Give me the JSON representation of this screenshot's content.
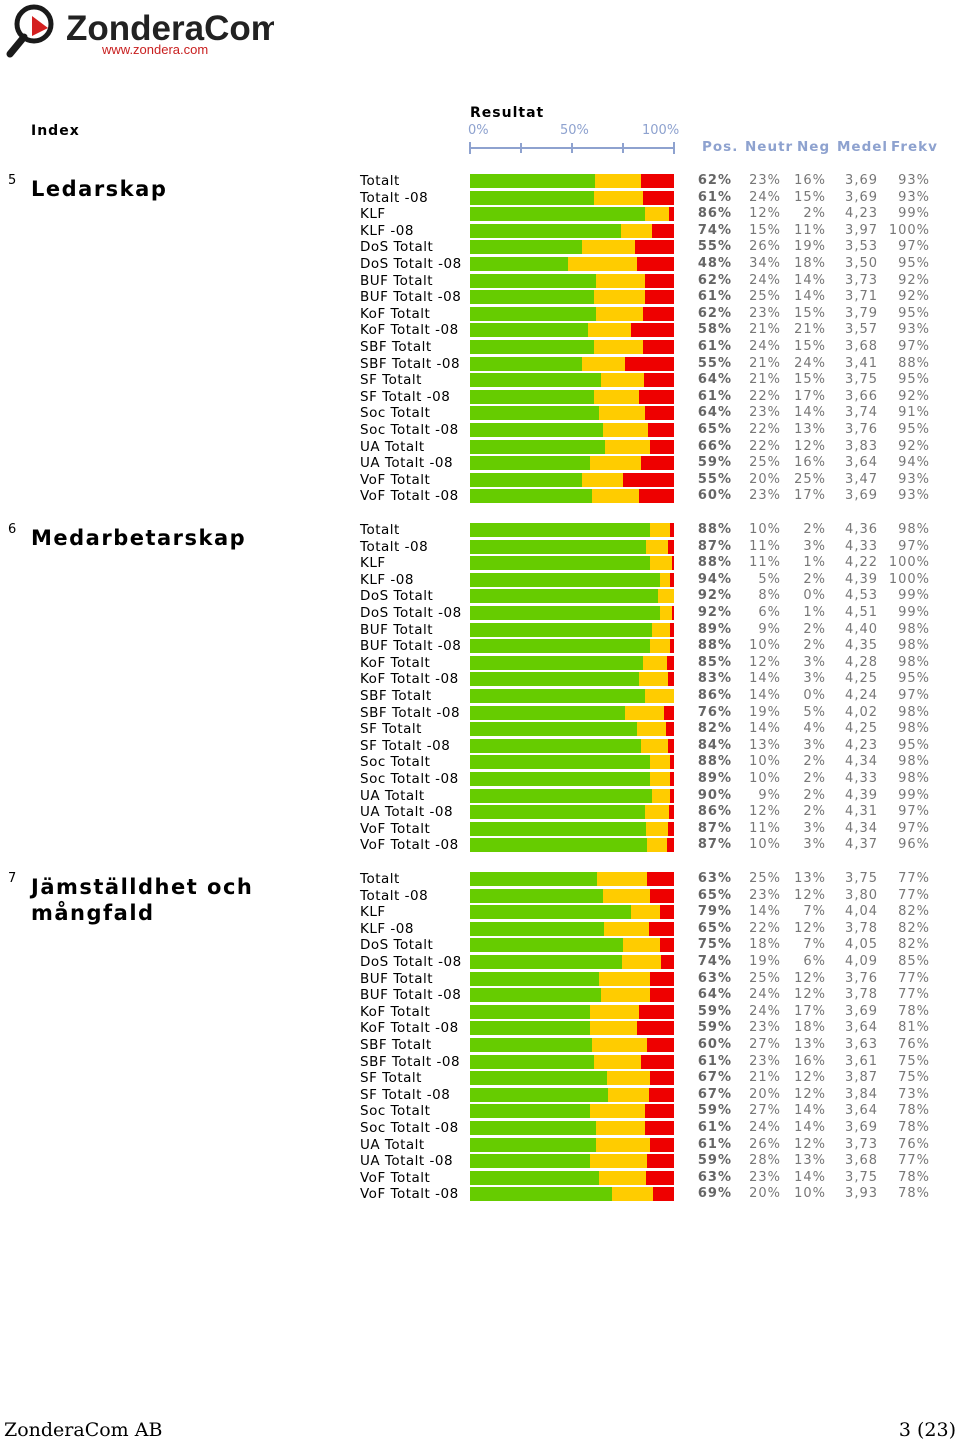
{
  "logo": {
    "name": "ZonderaCom",
    "url": "www.zondera.com"
  },
  "header": {
    "index_label": "Index",
    "resultat_label": "Resultat",
    "scale_ticks": [
      "0%",
      "50%",
      "100%"
    ],
    "columns": [
      "Pos.",
      "Neutr",
      "Neg",
      "Medel",
      "Frekv"
    ]
  },
  "colors": {
    "positive": "#66cc00",
    "neutral": "#ffcc00",
    "negative": "#ee0000",
    "header": "#8ea2cf"
  },
  "chart_data": {
    "type": "bar",
    "stacked": true,
    "orientation": "horizontal",
    "xlim": [
      0,
      100
    ],
    "series_names": [
      "Pos.",
      "Neutr",
      "Neg"
    ],
    "sections": [
      {
        "number": "5",
        "title": "Ledarskap",
        "rows": [
          {
            "label": "Totalt",
            "pos": 62,
            "neutr": 23,
            "neg": 16,
            "pos_text": "62%",
            "neutr_text": "23%",
            "neg_text": "16%",
            "medel": "3,69",
            "frekv": "93%"
          },
          {
            "label": "Totalt -08",
            "pos": 61,
            "neutr": 24,
            "neg": 15,
            "pos_text": "61%",
            "neutr_text": "24%",
            "neg_text": "15%",
            "medel": "3,69",
            "frekv": "93%"
          },
          {
            "label": "KLF",
            "pos": 86,
            "neutr": 12,
            "neg": 2,
            "pos_text": "86%",
            "neutr_text": "12%",
            "neg_text": "2%",
            "medel": "4,23",
            "frekv": "99%"
          },
          {
            "label": "KLF -08",
            "pos": 74,
            "neutr": 15,
            "neg": 11,
            "pos_text": "74%",
            "neutr_text": "15%",
            "neg_text": "11%",
            "medel": "3,97",
            "frekv": "100%"
          },
          {
            "label": "DoS Totalt",
            "pos": 55,
            "neutr": 26,
            "neg": 19,
            "pos_text": "55%",
            "neutr_text": "26%",
            "neg_text": "19%",
            "medel": "3,53",
            "frekv": "97%"
          },
          {
            "label": "DoS Totalt -08",
            "pos": 48,
            "neutr": 34,
            "neg": 18,
            "pos_text": "48%",
            "neutr_text": "34%",
            "neg_text": "18%",
            "medel": "3,50",
            "frekv": "95%"
          },
          {
            "label": "BUF Totalt",
            "pos": 62,
            "neutr": 24,
            "neg": 14,
            "pos_text": "62%",
            "neutr_text": "24%",
            "neg_text": "14%",
            "medel": "3,73",
            "frekv": "92%"
          },
          {
            "label": "BUF Totalt -08",
            "pos": 61,
            "neutr": 25,
            "neg": 14,
            "pos_text": "61%",
            "neutr_text": "25%",
            "neg_text": "14%",
            "medel": "3,71",
            "frekv": "92%"
          },
          {
            "label": "KoF Totalt",
            "pos": 62,
            "neutr": 23,
            "neg": 15,
            "pos_text": "62%",
            "neutr_text": "23%",
            "neg_text": "15%",
            "medel": "3,79",
            "frekv": "95%"
          },
          {
            "label": "KoF Totalt -08",
            "pos": 58,
            "neutr": 21,
            "neg": 21,
            "pos_text": "58%",
            "neutr_text": "21%",
            "neg_text": "21%",
            "medel": "3,57",
            "frekv": "93%"
          },
          {
            "label": "SBF Totalt",
            "pos": 61,
            "neutr": 24,
            "neg": 15,
            "pos_text": "61%",
            "neutr_text": "24%",
            "neg_text": "15%",
            "medel": "3,68",
            "frekv": "97%"
          },
          {
            "label": "SBF Totalt -08",
            "pos": 55,
            "neutr": 21,
            "neg": 24,
            "pos_text": "55%",
            "neutr_text": "21%",
            "neg_text": "24%",
            "medel": "3,41",
            "frekv": "88%"
          },
          {
            "label": "SF Totalt",
            "pos": 64,
            "neutr": 21,
            "neg": 15,
            "pos_text": "64%",
            "neutr_text": "21%",
            "neg_text": "15%",
            "medel": "3,75",
            "frekv": "95%"
          },
          {
            "label": "SF Totalt -08",
            "pos": 61,
            "neutr": 22,
            "neg": 17,
            "pos_text": "61%",
            "neutr_text": "22%",
            "neg_text": "17%",
            "medel": "3,66",
            "frekv": "92%"
          },
          {
            "label": "Soc Totalt",
            "pos": 64,
            "neutr": 23,
            "neg": 14,
            "pos_text": "64%",
            "neutr_text": "23%",
            "neg_text": "14%",
            "medel": "3,74",
            "frekv": "91%"
          },
          {
            "label": "Soc Totalt -08",
            "pos": 65,
            "neutr": 22,
            "neg": 13,
            "pos_text": "65%",
            "neutr_text": "22%",
            "neg_text": "13%",
            "medel": "3,76",
            "frekv": "95%"
          },
          {
            "label": "UA Totalt",
            "pos": 66,
            "neutr": 22,
            "neg": 12,
            "pos_text": "66%",
            "neutr_text": "22%",
            "neg_text": "12%",
            "medel": "3,83",
            "frekv": "92%"
          },
          {
            "label": "UA Totalt -08",
            "pos": 59,
            "neutr": 25,
            "neg": 16,
            "pos_text": "59%",
            "neutr_text": "25%",
            "neg_text": "16%",
            "medel": "3,64",
            "frekv": "94%"
          },
          {
            "label": "VoF Totalt",
            "pos": 55,
            "neutr": 20,
            "neg": 25,
            "pos_text": "55%",
            "neutr_text": "20%",
            "neg_text": "25%",
            "medel": "3,47",
            "frekv": "93%"
          },
          {
            "label": "VoF Totalt -08",
            "pos": 60,
            "neutr": 23,
            "neg": 17,
            "pos_text": "60%",
            "neutr_text": "23%",
            "neg_text": "17%",
            "medel": "3,69",
            "frekv": "93%"
          }
        ]
      },
      {
        "number": "6",
        "title": "Medarbetarskap",
        "rows": [
          {
            "label": "Totalt",
            "pos": 88,
            "neutr": 10,
            "neg": 2,
            "pos_text": "88%",
            "neutr_text": "10%",
            "neg_text": "2%",
            "medel": "4,36",
            "frekv": "98%"
          },
          {
            "label": "Totalt -08",
            "pos": 87,
            "neutr": 11,
            "neg": 3,
            "pos_text": "87%",
            "neutr_text": "11%",
            "neg_text": "3%",
            "medel": "4,33",
            "frekv": "97%"
          },
          {
            "label": "KLF",
            "pos": 88,
            "neutr": 11,
            "neg": 1,
            "pos_text": "88%",
            "neutr_text": "11%",
            "neg_text": "1%",
            "medel": "4,22",
            "frekv": "100%"
          },
          {
            "label": "KLF -08",
            "pos": 94,
            "neutr": 5,
            "neg": 2,
            "pos_text": "94%",
            "neutr_text": "5%",
            "neg_text": "2%",
            "medel": "4,39",
            "frekv": "100%"
          },
          {
            "label": "DoS Totalt",
            "pos": 92,
            "neutr": 8,
            "neg": 0,
            "pos_text": "92%",
            "neutr_text": "8%",
            "neg_text": "0%",
            "medel": "4,53",
            "frekv": "99%"
          },
          {
            "label": "DoS Totalt -08",
            "pos": 92,
            "neutr": 6,
            "neg": 1,
            "pos_text": "92%",
            "neutr_text": "6%",
            "neg_text": "1%",
            "medel": "4,51",
            "frekv": "99%"
          },
          {
            "label": "BUF Totalt",
            "pos": 89,
            "neutr": 9,
            "neg": 2,
            "pos_text": "89%",
            "neutr_text": "9%",
            "neg_text": "2%",
            "medel": "4,40",
            "frekv": "98%"
          },
          {
            "label": "BUF Totalt -08",
            "pos": 88,
            "neutr": 10,
            "neg": 2,
            "pos_text": "88%",
            "neutr_text": "10%",
            "neg_text": "2%",
            "medel": "4,35",
            "frekv": "98%"
          },
          {
            "label": "KoF Totalt",
            "pos": 85,
            "neutr": 12,
            "neg": 3,
            "pos_text": "85%",
            "neutr_text": "12%",
            "neg_text": "3%",
            "medel": "4,28",
            "frekv": "98%"
          },
          {
            "label": "KoF Totalt -08",
            "pos": 83,
            "neutr": 14,
            "neg": 3,
            "pos_text": "83%",
            "neutr_text": "14%",
            "neg_text": "3%",
            "medel": "4,25",
            "frekv": "95%"
          },
          {
            "label": "SBF Totalt",
            "pos": 86,
            "neutr": 14,
            "neg": 0,
            "pos_text": "86%",
            "neutr_text": "14%",
            "neg_text": "0%",
            "medel": "4,24",
            "frekv": "97%"
          },
          {
            "label": "SBF Totalt -08",
            "pos": 76,
            "neutr": 19,
            "neg": 5,
            "pos_text": "76%",
            "neutr_text": "19%",
            "neg_text": "5%",
            "medel": "4,02",
            "frekv": "98%"
          },
          {
            "label": "SF Totalt",
            "pos": 82,
            "neutr": 14,
            "neg": 4,
            "pos_text": "82%",
            "neutr_text": "14%",
            "neg_text": "4%",
            "medel": "4,25",
            "frekv": "98%"
          },
          {
            "label": "SF Totalt -08",
            "pos": 84,
            "neutr": 13,
            "neg": 3,
            "pos_text": "84%",
            "neutr_text": "13%",
            "neg_text": "3%",
            "medel": "4,23",
            "frekv": "95%"
          },
          {
            "label": "Soc Totalt",
            "pos": 88,
            "neutr": 10,
            "neg": 2,
            "pos_text": "88%",
            "neutr_text": "10%",
            "neg_text": "2%",
            "medel": "4,34",
            "frekv": "98%"
          },
          {
            "label": "Soc Totalt -08",
            "pos": 89,
            "neutr": 10,
            "neg": 2,
            "pos_text": "89%",
            "neutr_text": "10%",
            "neg_text": "2%",
            "medel": "4,33",
            "frekv": "98%"
          },
          {
            "label": "UA Totalt",
            "pos": 90,
            "neutr": 9,
            "neg": 2,
            "pos_text": "90%",
            "neutr_text": "9%",
            "neg_text": "2%",
            "medel": "4,39",
            "frekv": "99%"
          },
          {
            "label": "UA Totalt -08",
            "pos": 86,
            "neutr": 12,
            "neg": 2,
            "pos_text": "86%",
            "neutr_text": "12%",
            "neg_text": "2%",
            "medel": "4,31",
            "frekv": "97%"
          },
          {
            "label": "VoF Totalt",
            "pos": 87,
            "neutr": 11,
            "neg": 3,
            "pos_text": "87%",
            "neutr_text": "11%",
            "neg_text": "3%",
            "medel": "4,34",
            "frekv": "97%"
          },
          {
            "label": "VoF Totalt -08",
            "pos": 87,
            "neutr": 10,
            "neg": 3,
            "pos_text": "87%",
            "neutr_text": "10%",
            "neg_text": "3%",
            "medel": "4,37",
            "frekv": "96%"
          }
        ]
      },
      {
        "number": "7",
        "title": "Jämställdhet och\nmångfald",
        "rows": [
          {
            "label": "Totalt",
            "pos": 63,
            "neutr": 25,
            "neg": 13,
            "pos_text": "63%",
            "neutr_text": "25%",
            "neg_text": "13%",
            "medel": "3,75",
            "frekv": "77%"
          },
          {
            "label": "Totalt -08",
            "pos": 65,
            "neutr": 23,
            "neg": 12,
            "pos_text": "65%",
            "neutr_text": "23%",
            "neg_text": "12%",
            "medel": "3,80",
            "frekv": "77%"
          },
          {
            "label": "KLF",
            "pos": 79,
            "neutr": 14,
            "neg": 7,
            "pos_text": "79%",
            "neutr_text": "14%",
            "neg_text": "7%",
            "medel": "4,04",
            "frekv": "82%"
          },
          {
            "label": "KLF -08",
            "pos": 65,
            "neutr": 22,
            "neg": 12,
            "pos_text": "65%",
            "neutr_text": "22%",
            "neg_text": "12%",
            "medel": "3,78",
            "frekv": "82%"
          },
          {
            "label": "DoS Totalt",
            "pos": 75,
            "neutr": 18,
            "neg": 7,
            "pos_text": "75%",
            "neutr_text": "18%",
            "neg_text": "7%",
            "medel": "4,05",
            "frekv": "82%"
          },
          {
            "label": "DoS Totalt -08",
            "pos": 74,
            "neutr": 19,
            "neg": 6,
            "pos_text": "74%",
            "neutr_text": "19%",
            "neg_text": "6%",
            "medel": "4,09",
            "frekv": "85%"
          },
          {
            "label": "BUF Totalt",
            "pos": 63,
            "neutr": 25,
            "neg": 12,
            "pos_text": "63%",
            "neutr_text": "25%",
            "neg_text": "12%",
            "medel": "3,76",
            "frekv": "77%"
          },
          {
            "label": "BUF Totalt -08",
            "pos": 64,
            "neutr": 24,
            "neg": 12,
            "pos_text": "64%",
            "neutr_text": "24%",
            "neg_text": "12%",
            "medel": "3,78",
            "frekv": "77%"
          },
          {
            "label": "KoF Totalt",
            "pos": 59,
            "neutr": 24,
            "neg": 17,
            "pos_text": "59%",
            "neutr_text": "24%",
            "neg_text": "17%",
            "medel": "3,69",
            "frekv": "78%"
          },
          {
            "label": "KoF Totalt -08",
            "pos": 59,
            "neutr": 23,
            "neg": 18,
            "pos_text": "59%",
            "neutr_text": "23%",
            "neg_text": "18%",
            "medel": "3,64",
            "frekv": "81%"
          },
          {
            "label": "SBF Totalt",
            "pos": 60,
            "neutr": 27,
            "neg": 13,
            "pos_text": "60%",
            "neutr_text": "27%",
            "neg_text": "13%",
            "medel": "3,63",
            "frekv": "76%"
          },
          {
            "label": "SBF Totalt -08",
            "pos": 61,
            "neutr": 23,
            "neg": 16,
            "pos_text": "61%",
            "neutr_text": "23%",
            "neg_text": "16%",
            "medel": "3,61",
            "frekv": "75%"
          },
          {
            "label": "SF Totalt",
            "pos": 67,
            "neutr": 21,
            "neg": 12,
            "pos_text": "67%",
            "neutr_text": "21%",
            "neg_text": "12%",
            "medel": "3,87",
            "frekv": "75%"
          },
          {
            "label": "SF Totalt -08",
            "pos": 67,
            "neutr": 20,
            "neg": 12,
            "pos_text": "67%",
            "neutr_text": "20%",
            "neg_text": "12%",
            "medel": "3,84",
            "frekv": "73%"
          },
          {
            "label": "Soc Totalt",
            "pos": 59,
            "neutr": 27,
            "neg": 14,
            "pos_text": "59%",
            "neutr_text": "27%",
            "neg_text": "14%",
            "medel": "3,64",
            "frekv": "78%"
          },
          {
            "label": "Soc Totalt -08",
            "pos": 61,
            "neutr": 24,
            "neg": 14,
            "pos_text": "61%",
            "neutr_text": "24%",
            "neg_text": "14%",
            "medel": "3,69",
            "frekv": "78%"
          },
          {
            "label": "UA Totalt",
            "pos": 61,
            "neutr": 26,
            "neg": 12,
            "pos_text": "61%",
            "neutr_text": "26%",
            "neg_text": "12%",
            "medel": "3,73",
            "frekv": "76%"
          },
          {
            "label": "UA Totalt -08",
            "pos": 59,
            "neutr": 28,
            "neg": 13,
            "pos_text": "59%",
            "neutr_text": "28%",
            "neg_text": "13%",
            "medel": "3,68",
            "frekv": "77%"
          },
          {
            "label": "VoF Totalt",
            "pos": 63,
            "neutr": 23,
            "neg": 14,
            "pos_text": "63%",
            "neutr_text": "23%",
            "neg_text": "14%",
            "medel": "3,75",
            "frekv": "78%"
          },
          {
            "label": "VoF Totalt -08",
            "pos": 69,
            "neutr": 20,
            "neg": 10,
            "pos_text": "69%",
            "neutr_text": "20%",
            "neg_text": "10%",
            "medel": "3,93",
            "frekv": "78%"
          }
        ]
      }
    ]
  },
  "footer": {
    "company": "ZonderaCom AB",
    "page": "3 (23)"
  }
}
